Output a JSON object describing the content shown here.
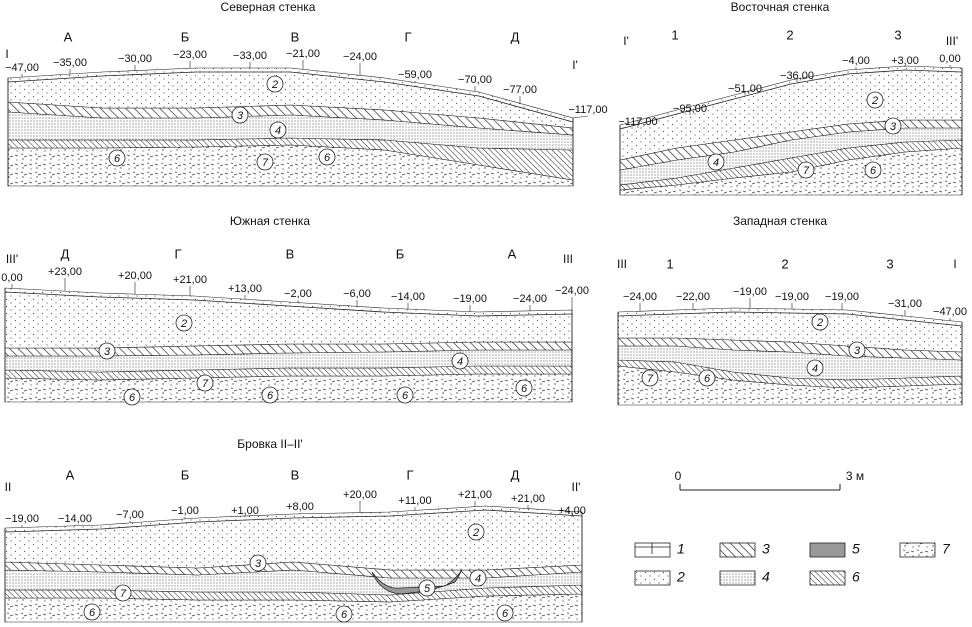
{
  "panels": [
    {
      "title": "Северная стенка",
      "ends": [
        "I",
        "I'"
      ],
      "squares": [
        "А",
        "Б",
        "В",
        "Г",
        "Д"
      ],
      "elevations": [
        "−47,00",
        "−35,00",
        "−30,00",
        "−23,00",
        "−33,00",
        "−21,00",
        "−24,00",
        "−59,00",
        "−70,00",
        "−77,00",
        "−117,00"
      ],
      "layers": [
        "2",
        "3",
        "4",
        "7",
        "6",
        "6"
      ]
    },
    {
      "title": "Восточная стенка",
      "ends": [
        "I'",
        "III'"
      ],
      "squares": [
        "1",
        "2",
        "3"
      ],
      "elevations": [
        "−117,00",
        "−95,00",
        "−51,00",
        "−36,00",
        "−4,00",
        "+3,00",
        "0,00"
      ],
      "layers": [
        "2",
        "3",
        "4",
        "7",
        "6"
      ]
    },
    {
      "title": "Южная стенка",
      "ends": [
        "III'",
        "III"
      ],
      "squares": [
        "Д",
        "Г",
        "В",
        "Б",
        "А"
      ],
      "elevations": [
        "0,00",
        "+23,00",
        "+20,00",
        "+21,00",
        "+13,00",
        "−2,00",
        "−6,00",
        "−14,00",
        "−19,00",
        "−24,00",
        "−24,00"
      ],
      "layers": [
        "2",
        "3",
        "4",
        "7",
        "6",
        "6",
        "6",
        "6"
      ]
    },
    {
      "title": "Западная стенка",
      "ends": [
        "III",
        "I"
      ],
      "squares": [
        "1",
        "2",
        "3"
      ],
      "elevations": [
        "−24,00",
        "−22,00",
        "−19,00",
        "−19,00",
        "−19,00",
        "−31,00",
        "−47,00"
      ],
      "layers": [
        "2",
        "3",
        "4",
        "7",
        "6"
      ]
    },
    {
      "title": "Бровка II–II'",
      "ends": [
        "II",
        "II'"
      ],
      "squares": [
        "А",
        "Б",
        "В",
        "Г",
        "Д"
      ],
      "elevations": [
        "−19,00",
        "−14,00",
        "−7,00",
        "−1,00",
        "+1,00",
        "+8,00",
        "+20,00",
        "+11,00",
        "+21,00",
        "+21,00",
        "+4,00"
      ],
      "layers": [
        "2",
        "3",
        "7",
        "6",
        "6",
        "5",
        "4",
        "6"
      ]
    }
  ],
  "scale": {
    "start": "0",
    "end": "3 м"
  },
  "legend": [
    "1",
    "2",
    "3",
    "4",
    "5",
    "6",
    "7"
  ]
}
